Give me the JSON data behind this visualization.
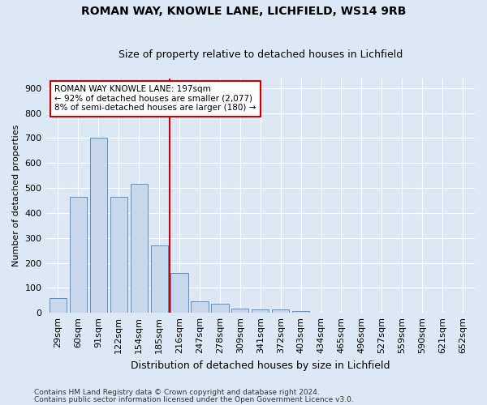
{
  "title": "ROMAN WAY, KNOWLE LANE, LICHFIELD, WS14 9RB",
  "subtitle": "Size of property relative to detached houses in Lichfield",
  "xlabel": "Distribution of detached houses by size in Lichfield",
  "ylabel": "Number of detached properties",
  "footnote1": "Contains HM Land Registry data © Crown copyright and database right 2024.",
  "footnote2": "Contains public sector information licensed under the Open Government Licence v3.0.",
  "bar_color": "#c8d8ec",
  "bar_edge_color": "#6090c0",
  "vline_color": "#cc0000",
  "vline_x_index": 6,
  "annotation_line1": "ROMAN WAY KNOWLE LANE: 197sqm",
  "annotation_line2": "← 92% of detached houses are smaller (2,077)",
  "annotation_line3": "8% of semi-detached houses are larger (180) →",
  "annotation_box_color": "#cc0000",
  "categories": [
    "29sqm",
    "60sqm",
    "91sqm",
    "122sqm",
    "154sqm",
    "185sqm",
    "216sqm",
    "247sqm",
    "278sqm",
    "309sqm",
    "341sqm",
    "372sqm",
    "403sqm",
    "434sqm",
    "465sqm",
    "496sqm",
    "527sqm",
    "559sqm",
    "590sqm",
    "621sqm",
    "652sqm"
  ],
  "values": [
    60,
    465,
    700,
    465,
    515,
    270,
    160,
    47,
    35,
    16,
    13,
    13,
    7,
    1,
    0,
    0,
    0,
    0,
    0,
    0,
    0
  ],
  "ylim": [
    0,
    940
  ],
  "yticks": [
    0,
    100,
    200,
    300,
    400,
    500,
    600,
    700,
    800,
    900
  ],
  "background_color": "#dce8f5",
  "plot_bg_color": "#dce8f5",
  "grid_color": "#ffffff",
  "title_fontsize": 10,
  "subtitle_fontsize": 9,
  "ylabel_fontsize": 8,
  "xlabel_fontsize": 9,
  "tick_fontsize": 8,
  "footnote_fontsize": 6.5,
  "annot_fontsize": 7.5
}
